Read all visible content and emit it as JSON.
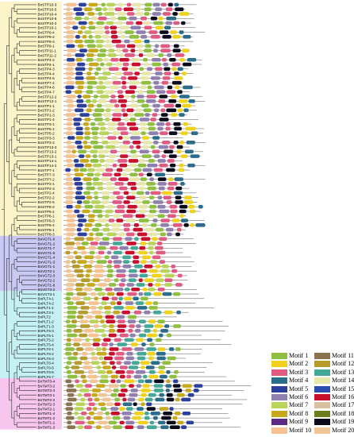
{
  "figure": {
    "genes": [
      "BnSTP10-3",
      "BnSTP10-5",
      "BnSTP10-4",
      "BnSTP10-6",
      "BnSTP10-2",
      "BnSTP10-1",
      "BnSTP9-4",
      "BnSTP9-2",
      "BnSTP9-3",
      "BnSTP9-1",
      "BnSTP11-1",
      "BnSTP11-2",
      "BnSTP4-2",
      "BnSTP4-1",
      "BnSTP4-3",
      "BnSTP4-4",
      "BnSTP4-5",
      "BnSTP7-4",
      "BnSTP4-6",
      "BnSTP4-7",
      "BnSTP12-2",
      "BnSTP12-1",
      "BnSTP1-1",
      "BnSTP1-2",
      "BnSTP1-3",
      "BnSTP1-4",
      "BnSTP3-1",
      "BnSTP5-1",
      "BnSTP5-2",
      "BnSTP3-3",
      "BnSTP3-2",
      "BnSTP13-3",
      "BnSTP13-2",
      "BnSTP13-1",
      "BnSTP14-1",
      "BnSTP14-2",
      "BnSTP7-1",
      "BnSTP7-3",
      "BnSTP7-2",
      "BnSTP2-1",
      "BnSTP2-3",
      "BnSTP2-4",
      "BnSTP2-2",
      "BnSTP2-5",
      "BnSTP8-2",
      "BnSTP6-2",
      "BnSTP6-1",
      "BnSTP6-3",
      "BnSTP6-4",
      "BnSTP8-1",
      "BnSTP8-3",
      "BnVGT1-6",
      "BnVGT1-2",
      "BnVGT1-7",
      "BnVGT1-5",
      "BnVGT1-4",
      "BnVGT1-3",
      "BnVGT1-1",
      "BnVGT2-1",
      "BnVGT2-3",
      "BnVGT2-2",
      "BnVGT1-8",
      "BnVGT3-2",
      "BnVGT3-1",
      "BnPLT4-1",
      "BnPLT4-2",
      "BnPLT1-1",
      "BnPLT3-1",
      "BnPLT2",
      "BnPLT1-2",
      "BnPLT1-3",
      "BnPLT5-3",
      "BnPLT5-1",
      "BnPLT5-2",
      "BnPLT5-4",
      "BnPLT6-1",
      "BnPLT6-2",
      "BnPLT6-3",
      "BnPLT6-4",
      "BnPLT6-5",
      "BnPLT6-6",
      "BnPLT6-7",
      "BnTMT3-4",
      "BnTMT3-2",
      "BnTMT3-3",
      "BnTMT3-1",
      "BnTMT2-2",
      "BnTMT2-3",
      "BnTMT2-1",
      "BnTMT1-4",
      "BnTMT1-2",
      "BnTMT1-1",
      "BnTMT1-3"
    ]
  },
  "legend": {
    "items": [
      {
        "label": "Motif 1",
        "color": "#8fbf3f"
      },
      {
        "label": "Motif 2",
        "color": "#f0d21a"
      },
      {
        "label": "Motif 3",
        "color": "#e05a82"
      },
      {
        "label": "Motif 4",
        "color": "#2b6c8a"
      },
      {
        "label": "Motif 5",
        "color": "#2c3f9a"
      },
      {
        "label": "Motif 6",
        "color": "#8f80b0"
      },
      {
        "label": "Motif 7",
        "color": "#b8d45a"
      },
      {
        "label": "Motif 8",
        "color": "#c9a91c"
      },
      {
        "label": "Motif 9",
        "color": "#5b2a86"
      },
      {
        "label": "Motif 10",
        "color": "#f5c291"
      },
      {
        "label": "Motif 11",
        "color": "#8a7350"
      },
      {
        "label": "Motif 12",
        "color": "#b59a2c"
      },
      {
        "label": "Motif 13",
        "color": "#44a896"
      },
      {
        "label": "Motif 14",
        "color": "#e7e7aa"
      },
      {
        "label": "Motif 15",
        "color": "#2a4fb0"
      },
      {
        "label": "Motif 16",
        "color": "#c8102e"
      },
      {
        "label": "Motif 17",
        "color": "#d8c0a0"
      },
      {
        "label": "Motif 18",
        "color": "#6b7c1a"
      },
      {
        "label": "Motif 19",
        "color": "#0a0a1a"
      },
      {
        "label": "Motif 20",
        "color": "#f0c696"
      }
    ]
  }
}
